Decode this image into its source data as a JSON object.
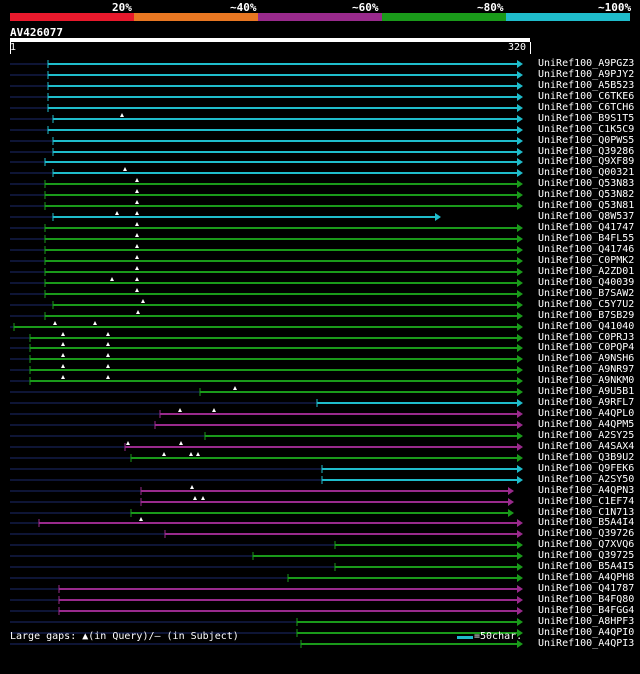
{
  "legend": {
    "segments": [
      {
        "label": "20%",
        "color": "#e8192c"
      },
      {
        "label": "~40%",
        "color": "#e87722"
      },
      {
        "label": "~60%",
        "color": "#992a8c"
      },
      {
        "label": "~80%",
        "color": "#1a9a1a"
      },
      {
        "label": "~100%",
        "color": "#1fbccb"
      }
    ]
  },
  "query": {
    "id": "AV426077",
    "start": "1",
    "end": "320"
  },
  "hits": [
    "UniRef100_A9PGZ3",
    "UniRef100_A9PJY2",
    "UniRef100_A5B523",
    "UniRef100_C6TKE6",
    "UniRef100_C6TCH6",
    "UniRef100_B9S1T5",
    "UniRef100_C1K5C9",
    "UniRef100_Q0PWS5",
    "UniRef100_Q39286",
    "UniRef100_Q9XF89",
    "UniRef100_Q00321",
    "UniRef100_Q53N83",
    "UniRef100_Q53N82",
    "UniRef100_Q53N81",
    "UniRef100_Q8W537",
    "UniRef100_Q41747",
    "UniRef100_B4FL55",
    "UniRef100_Q41746",
    "UniRef100_C0PMK2",
    "UniRef100_A2ZD01",
    "UniRef100_Q40039",
    "UniRef100_B7SAW2",
    "UniRef100_C5Y7U2",
    "UniRef100_B7SB29",
    "UniRef100_Q41040",
    "UniRef100_C0PRJ3",
    "UniRef100_C0PQP4",
    "UniRef100_A9NSH6",
    "UniRef100_A9NR97",
    "UniRef100_A9NKM0",
    "UniRef100_A9U5B1",
    "UniRef100_A9RFL7",
    "UniRef100_A4QPL0",
    "UniRef100_A4QPM5",
    "UniRef100_A2SY25",
    "UniRef100_A4SAX4",
    "UniRef100_Q3B9U2",
    "UniRef100_Q9FEK6",
    "UniRef100_A2SY50",
    "UniRef100_A4QPN3",
    "UniRef100_C1EF74",
    "UniRef100_C1N713",
    "UniRef100_B5A4I4",
    "UniRef100_Q39726",
    "UniRef100_Q7XVQ6",
    "UniRef100_Q39725",
    "UniRef100_B5A4I5",
    "UniRef100_A4QPH8",
    "UniRef100_Q41787",
    "UniRef100_B4FQ80",
    "UniRef100_B4FGG4",
    "UniRef100_A8HPF3",
    "UniRef100_A4QPI0",
    "UniRef100_A4QPI3"
  ],
  "footer": {
    "gaps_text": "Large gaps: ▲(in Query)/– (in Subject)",
    "scale_text": "=50char."
  }
}
